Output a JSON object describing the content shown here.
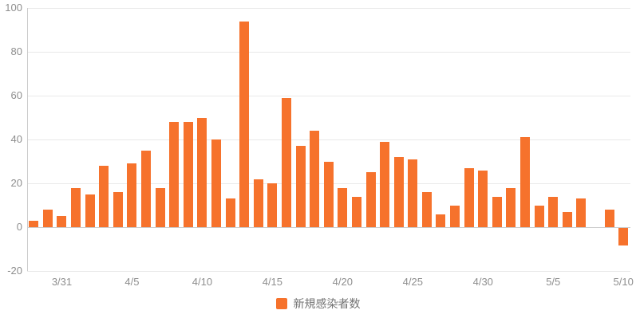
{
  "legend": {
    "label": "新規感染者数"
  },
  "chart_data": {
    "type": "bar",
    "title": "",
    "series_name": "新規感染者数",
    "categories": [
      "3/29",
      "3/30",
      "3/31",
      "4/1",
      "4/2",
      "4/3",
      "4/4",
      "4/5",
      "4/6",
      "4/7",
      "4/8",
      "4/9",
      "4/10",
      "4/11",
      "4/12",
      "4/13",
      "4/14",
      "4/15",
      "4/16",
      "4/17",
      "4/18",
      "4/19",
      "4/20",
      "4/21",
      "4/22",
      "4/23",
      "4/24",
      "4/25",
      "4/26",
      "4/27",
      "4/28",
      "4/29",
      "4/30",
      "5/1",
      "5/2",
      "5/3",
      "5/4",
      "5/5",
      "5/6",
      "5/7",
      "5/8",
      "5/9",
      "5/10"
    ],
    "values": [
      3,
      8,
      5,
      18,
      15,
      28,
      16,
      29,
      35,
      18,
      48,
      48,
      50,
      40,
      13,
      94,
      22,
      20,
      59,
      37,
      44,
      30,
      18,
      14,
      25,
      39,
      32,
      31,
      16,
      6,
      10,
      27,
      26,
      14,
      18,
      41,
      10,
      14,
      7,
      13,
      0,
      8,
      -8
    ],
    "x_tick_labels": [
      "3/31",
      "4/5",
      "4/10",
      "4/15",
      "4/20",
      "4/25",
      "4/30",
      "5/5",
      "5/10"
    ],
    "y_ticks": [
      100,
      80,
      60,
      40,
      20,
      0,
      -20
    ],
    "y_tick_labels": [
      "100",
      "80",
      "60",
      "40",
      "20",
      "0",
      "-20"
    ],
    "ylim": [
      -20,
      100
    ],
    "xlabel": "",
    "ylabel": "",
    "grid": true,
    "legend_position": "bottom",
    "bar_color": "#f6722c",
    "gridline_color": "#e9e9e9",
    "axis_line_color": "#cccccc",
    "tick_label_color": "#8e8e8e"
  }
}
